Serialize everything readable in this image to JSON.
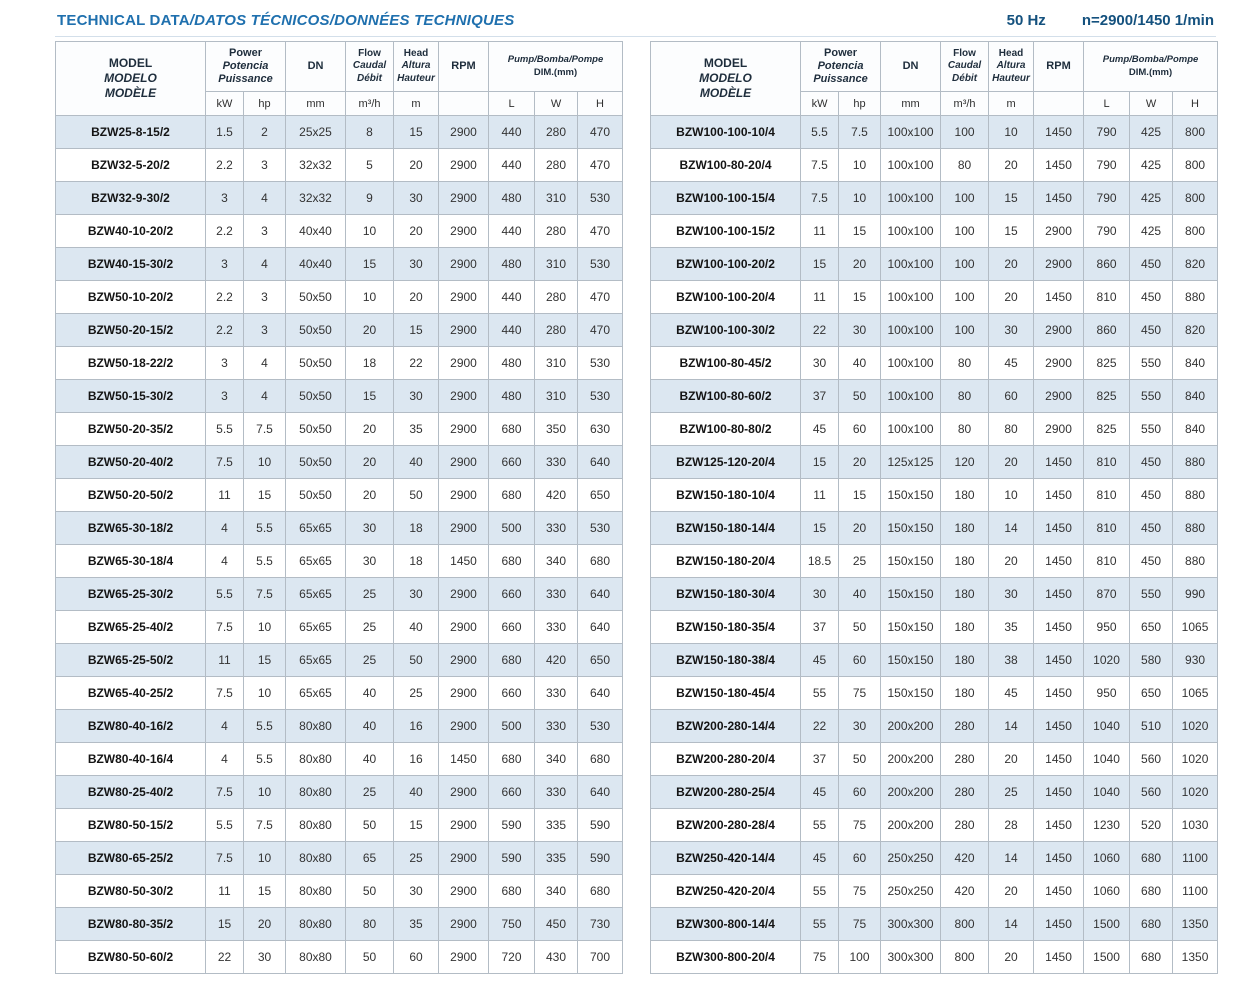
{
  "header": {
    "title_main": "TECHNICAL DATA",
    "title_rest": "/DATOS TÉCNICOS/DONNÉES TECHNIQUES",
    "frequency": "50 Hz",
    "speed": "n=2900/1450 1/min"
  },
  "colors": {
    "title_blue": "#1f70ae",
    "meta_blue": "#14517e",
    "row_stripe": "#dce7f1",
    "grid_line": "#b3bcc5"
  },
  "columns": {
    "model": [
      "MODEL",
      "MODELO",
      "MODÈLE"
    ],
    "power": [
      "Power",
      "Potencia",
      "Puissance"
    ],
    "power_units": [
      "kW",
      "hp"
    ],
    "dn": "DN",
    "dn_unit": "mm",
    "flow": [
      "Flow",
      "Caudal",
      "Débit"
    ],
    "flow_unit": "m³/h",
    "head": [
      "Head",
      "Altura",
      "Hauteur"
    ],
    "head_unit": "m",
    "rpm": "RPM",
    "dim": [
      "Pump/Bomba/Pompe",
      "DIM.(mm)"
    ],
    "dim_units": [
      "L",
      "W",
      "H"
    ]
  },
  "tables": {
    "left": [
      [
        "BZW25-8-15/2",
        "1.5",
        "2",
        "25x25",
        "8",
        "15",
        "2900",
        "440",
        "280",
        "470"
      ],
      [
        "BZW32-5-20/2",
        "2.2",
        "3",
        "32x32",
        "5",
        "20",
        "2900",
        "440",
        "280",
        "470"
      ],
      [
        "BZW32-9-30/2",
        "3",
        "4",
        "32x32",
        "9",
        "30",
        "2900",
        "480",
        "310",
        "530"
      ],
      [
        "BZW40-10-20/2",
        "2.2",
        "3",
        "40x40",
        "10",
        "20",
        "2900",
        "440",
        "280",
        "470"
      ],
      [
        "BZW40-15-30/2",
        "3",
        "4",
        "40x40",
        "15",
        "30",
        "2900",
        "480",
        "310",
        "530"
      ],
      [
        "BZW50-10-20/2",
        "2.2",
        "3",
        "50x50",
        "10",
        "20",
        "2900",
        "440",
        "280",
        "470"
      ],
      [
        "BZW50-20-15/2",
        "2.2",
        "3",
        "50x50",
        "20",
        "15",
        "2900",
        "440",
        "280",
        "470"
      ],
      [
        "BZW50-18-22/2",
        "3",
        "4",
        "50x50",
        "18",
        "22",
        "2900",
        "480",
        "310",
        "530"
      ],
      [
        "BZW50-15-30/2",
        "3",
        "4",
        "50x50",
        "15",
        "30",
        "2900",
        "480",
        "310",
        "530"
      ],
      [
        "BZW50-20-35/2",
        "5.5",
        "7.5",
        "50x50",
        "20",
        "35",
        "2900",
        "680",
        "350",
        "630"
      ],
      [
        "BZW50-20-40/2",
        "7.5",
        "10",
        "50x50",
        "20",
        "40",
        "2900",
        "660",
        "330",
        "640"
      ],
      [
        "BZW50-20-50/2",
        "11",
        "15",
        "50x50",
        "20",
        "50",
        "2900",
        "680",
        "420",
        "650"
      ],
      [
        "BZW65-30-18/2",
        "4",
        "5.5",
        "65x65",
        "30",
        "18",
        "2900",
        "500",
        "330",
        "530"
      ],
      [
        "BZW65-30-18/4",
        "4",
        "5.5",
        "65x65",
        "30",
        "18",
        "1450",
        "680",
        "340",
        "680"
      ],
      [
        "BZW65-25-30/2",
        "5.5",
        "7.5",
        "65x65",
        "25",
        "30",
        "2900",
        "660",
        "330",
        "640"
      ],
      [
        "BZW65-25-40/2",
        "7.5",
        "10",
        "65x65",
        "25",
        "40",
        "2900",
        "660",
        "330",
        "640"
      ],
      [
        "BZW65-25-50/2",
        "11",
        "15",
        "65x65",
        "25",
        "50",
        "2900",
        "680",
        "420",
        "650"
      ],
      [
        "BZW65-40-25/2",
        "7.5",
        "10",
        "65x65",
        "40",
        "25",
        "2900",
        "660",
        "330",
        "640"
      ],
      [
        "BZW80-40-16/2",
        "4",
        "5.5",
        "80x80",
        "40",
        "16",
        "2900",
        "500",
        "330",
        "530"
      ],
      [
        "BZW80-40-16/4",
        "4",
        "5.5",
        "80x80",
        "40",
        "16",
        "1450",
        "680",
        "340",
        "680"
      ],
      [
        "BZW80-25-40/2",
        "7.5",
        "10",
        "80x80",
        "25",
        "40",
        "2900",
        "660",
        "330",
        "640"
      ],
      [
        "BZW80-50-15/2",
        "5.5",
        "7.5",
        "80x80",
        "50",
        "15",
        "2900",
        "590",
        "335",
        "590"
      ],
      [
        "BZW80-65-25/2",
        "7.5",
        "10",
        "80x80",
        "65",
        "25",
        "2900",
        "590",
        "335",
        "590"
      ],
      [
        "BZW80-50-30/2",
        "11",
        "15",
        "80x80",
        "50",
        "30",
        "2900",
        "680",
        "340",
        "680"
      ],
      [
        "BZW80-80-35/2",
        "15",
        "20",
        "80x80",
        "80",
        "35",
        "2900",
        "750",
        "450",
        "730"
      ],
      [
        "BZW80-50-60/2",
        "22",
        "30",
        "80x80",
        "50",
        "60",
        "2900",
        "720",
        "430",
        "700"
      ]
    ],
    "right": [
      [
        "BZW100-100-10/4",
        "5.5",
        "7.5",
        "100x100",
        "100",
        "10",
        "1450",
        "790",
        "425",
        "800"
      ],
      [
        "BZW100-80-20/4",
        "7.5",
        "10",
        "100x100",
        "80",
        "20",
        "1450",
        "790",
        "425",
        "800"
      ],
      [
        "BZW100-100-15/4",
        "7.5",
        "10",
        "100x100",
        "100",
        "15",
        "1450",
        "790",
        "425",
        "800"
      ],
      [
        "BZW100-100-15/2",
        "11",
        "15",
        "100x100",
        "100",
        "15",
        "2900",
        "790",
        "425",
        "800"
      ],
      [
        "BZW100-100-20/2",
        "15",
        "20",
        "100x100",
        "100",
        "20",
        "2900",
        "860",
        "450",
        "820"
      ],
      [
        "BZW100-100-20/4",
        "11",
        "15",
        "100x100",
        "100",
        "20",
        "1450",
        "810",
        "450",
        "880"
      ],
      [
        "BZW100-100-30/2",
        "22",
        "30",
        "100x100",
        "100",
        "30",
        "2900",
        "860",
        "450",
        "820"
      ],
      [
        "BZW100-80-45/2",
        "30",
        "40",
        "100x100",
        "80",
        "45",
        "2900",
        "825",
        "550",
        "840"
      ],
      [
        "BZW100-80-60/2",
        "37",
        "50",
        "100x100",
        "80",
        "60",
        "2900",
        "825",
        "550",
        "840"
      ],
      [
        "BZW100-80-80/2",
        "45",
        "60",
        "100x100",
        "80",
        "80",
        "2900",
        "825",
        "550",
        "840"
      ],
      [
        "BZW125-120-20/4",
        "15",
        "20",
        "125x125",
        "120",
        "20",
        "1450",
        "810",
        "450",
        "880"
      ],
      [
        "BZW150-180-10/4",
        "11",
        "15",
        "150x150",
        "180",
        "10",
        "1450",
        "810",
        "450",
        "880"
      ],
      [
        "BZW150-180-14/4",
        "15",
        "20",
        "150x150",
        "180",
        "14",
        "1450",
        "810",
        "450",
        "880"
      ],
      [
        "BZW150-180-20/4",
        "18.5",
        "25",
        "150x150",
        "180",
        "20",
        "1450",
        "810",
        "450",
        "880"
      ],
      [
        "BZW150-180-30/4",
        "30",
        "40",
        "150x150",
        "180",
        "30",
        "1450",
        "870",
        "550",
        "990"
      ],
      [
        "BZW150-180-35/4",
        "37",
        "50",
        "150x150",
        "180",
        "35",
        "1450",
        "950",
        "650",
        "1065"
      ],
      [
        "BZW150-180-38/4",
        "45",
        "60",
        "150x150",
        "180",
        "38",
        "1450",
        "1020",
        "580",
        "930"
      ],
      [
        "BZW150-180-45/4",
        "55",
        "75",
        "150x150",
        "180",
        "45",
        "1450",
        "950",
        "650",
        "1065"
      ],
      [
        "BZW200-280-14/4",
        "22",
        "30",
        "200x200",
        "280",
        "14",
        "1450",
        "1040",
        "510",
        "1020"
      ],
      [
        "BZW200-280-20/4",
        "37",
        "50",
        "200x200",
        "280",
        "20",
        "1450",
        "1040",
        "560",
        "1020"
      ],
      [
        "BZW200-280-25/4",
        "45",
        "60",
        "200x200",
        "280",
        "25",
        "1450",
        "1040",
        "560",
        "1020"
      ],
      [
        "BZW200-280-28/4",
        "55",
        "75",
        "200x200",
        "280",
        "28",
        "1450",
        "1230",
        "520",
        "1030"
      ],
      [
        "BZW250-420-14/4",
        "45",
        "60",
        "250x250",
        "420",
        "14",
        "1450",
        "1060",
        "680",
        "1100"
      ],
      [
        "BZW250-420-20/4",
        "55",
        "75",
        "250x250",
        "420",
        "20",
        "1450",
        "1060",
        "680",
        "1100"
      ],
      [
        "BZW300-800-14/4",
        "55",
        "75",
        "300x300",
        "800",
        "14",
        "1450",
        "1500",
        "680",
        "1350"
      ],
      [
        "BZW300-800-20/4",
        "75",
        "100",
        "300x300",
        "800",
        "20",
        "1450",
        "1500",
        "680",
        "1350"
      ]
    ]
  }
}
